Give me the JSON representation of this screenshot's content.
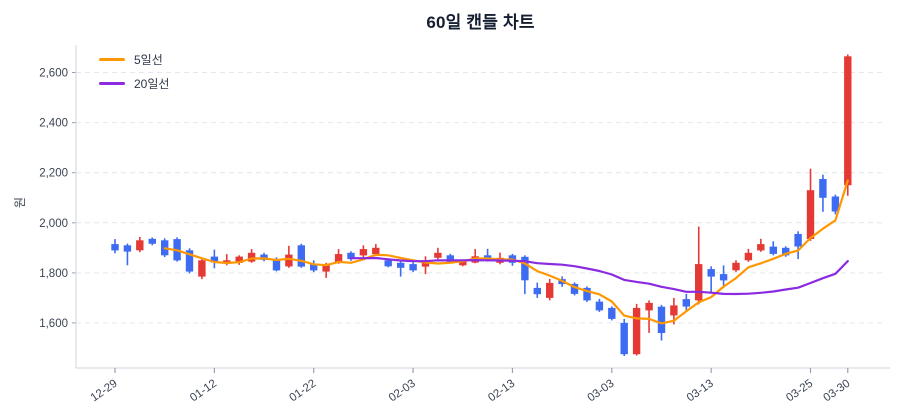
{
  "title": "60일 캔들 차트",
  "y_axis": {
    "label": "원",
    "ticks": [
      {
        "value": 1600,
        "label": "1,600"
      },
      {
        "value": 1800,
        "label": "1,800"
      },
      {
        "value": 2000,
        "label": "2,000"
      },
      {
        "value": 2200,
        "label": "2,200"
      },
      {
        "value": 2400,
        "label": "2,400"
      },
      {
        "value": 2600,
        "label": "2,600"
      }
    ]
  },
  "x_axis": {
    "ticks": [
      {
        "index": 0,
        "label": "12-29"
      },
      {
        "index": 8,
        "label": "01-12"
      },
      {
        "index": 16,
        "label": "01-22"
      },
      {
        "index": 24,
        "label": "02-03"
      },
      {
        "index": 32,
        "label": "02-13"
      },
      {
        "index": 40,
        "label": "03-03"
      },
      {
        "index": 48,
        "label": "03-13"
      },
      {
        "index": 56,
        "label": "03-25"
      },
      {
        "index": 59,
        "label": "03-30"
      }
    ]
  },
  "legend": {
    "ma5_label": "5일선",
    "ma20_label": "20일선"
  },
  "chart_data": {
    "type": "candlestick",
    "title": "60일 캔들 차트",
    "ylabel": "원",
    "unit": "원",
    "ylim": [
      1420,
      2710
    ],
    "grid": true,
    "legend_position": "top-left",
    "colors": {
      "up": "#e53935",
      "down": "#3d6cf2",
      "ma5": "#ff9800",
      "ma20": "#8a2be2",
      "grid": "#e4e7eb",
      "spine": "#d8dce2",
      "tick": "#9aa1ac",
      "text": "#3b4454",
      "title": "#141e30"
    },
    "overlays": [
      {
        "key": "ma5",
        "name": "5일선",
        "window": 5,
        "color": "#ff9800"
      },
      {
        "key": "ma20",
        "name": "20일선",
        "window": 20,
        "color": "#8a2be2"
      }
    ],
    "candles_format": [
      "open",
      "high",
      "low",
      "close"
    ],
    "candles": [
      [
        1915,
        1935,
        1878,
        1890
      ],
      [
        1910,
        1917,
        1830,
        1885
      ],
      [
        1890,
        1943,
        1883,
        1930
      ],
      [
        1936,
        1941,
        1910,
        1916
      ],
      [
        1930,
        1938,
        1863,
        1870
      ],
      [
        1935,
        1942,
        1845,
        1850
      ],
      [
        1890,
        1898,
        1798,
        1805
      ],
      [
        1785,
        1855,
        1775,
        1850
      ],
      [
        1865,
        1893,
        1818,
        1842
      ],
      [
        1840,
        1875,
        1830,
        1850
      ],
      [
        1840,
        1870,
        1832,
        1865
      ],
      [
        1845,
        1895,
        1840,
        1880
      ],
      [
        1873,
        1880,
        1846,
        1852
      ],
      [
        1855,
        1862,
        1806,
        1810
      ],
      [
        1826,
        1908,
        1820,
        1873
      ],
      [
        1910,
        1916,
        1820,
        1825
      ],
      [
        1835,
        1850,
        1803,
        1810
      ],
      [
        1805,
        1840,
        1780,
        1835
      ],
      [
        1840,
        1895,
        1836,
        1875
      ],
      [
        1880,
        1886,
        1848,
        1855
      ],
      [
        1870,
        1910,
        1863,
        1895
      ],
      [
        1875,
        1915,
        1868,
        1900
      ],
      [
        1850,
        1858,
        1822,
        1826
      ],
      [
        1840,
        1845,
        1785,
        1820
      ],
      [
        1835,
        1842,
        1804,
        1810
      ],
      [
        1825,
        1866,
        1795,
        1850
      ],
      [
        1860,
        1900,
        1854,
        1880
      ],
      [
        1870,
        1876,
        1838,
        1841
      ],
      [
        1830,
        1853,
        1826,
        1850
      ],
      [
        1841,
        1895,
        1838,
        1866
      ],
      [
        1870,
        1896,
        1845,
        1850
      ],
      [
        1840,
        1881,
        1834,
        1860
      ],
      [
        1870,
        1876,
        1828,
        1840
      ],
      [
        1864,
        1870,
        1715,
        1770
      ],
      [
        1740,
        1761,
        1700,
        1715
      ],
      [
        1700,
        1776,
        1690,
        1760
      ],
      [
        1775,
        1786,
        1744,
        1755
      ],
      [
        1756,
        1762,
        1710,
        1716
      ],
      [
        1740,
        1746,
        1684,
        1690
      ],
      [
        1685,
        1696,
        1644,
        1650
      ],
      [
        1660,
        1666,
        1610,
        1616
      ],
      [
        1600,
        1616,
        1468,
        1475
      ],
      [
        1475,
        1676,
        1470,
        1660
      ],
      [
        1650,
        1690,
        1560,
        1680
      ],
      [
        1665,
        1672,
        1530,
        1560
      ],
      [
        1630,
        1700,
        1594,
        1670
      ],
      [
        1695,
        1716,
        1648,
        1665
      ],
      [
        1690,
        1985,
        1674,
        1835
      ],
      [
        1815,
        1826,
        1720,
        1785
      ],
      [
        1795,
        1830,
        1740,
        1770
      ],
      [
        1810,
        1850,
        1804,
        1840
      ],
      [
        1850,
        1896,
        1844,
        1880
      ],
      [
        1890,
        1936,
        1884,
        1915
      ],
      [
        1905,
        1926,
        1870,
        1876
      ],
      [
        1900,
        1906,
        1864,
        1870
      ],
      [
        1955,
        1966,
        1855,
        1905
      ],
      [
        1935,
        2216,
        1928,
        2130
      ],
      [
        2175,
        2192,
        2044,
        2100
      ],
      [
        2105,
        2112,
        2034,
        2045
      ],
      [
        2150,
        2672,
        2108,
        2665
      ]
    ]
  }
}
